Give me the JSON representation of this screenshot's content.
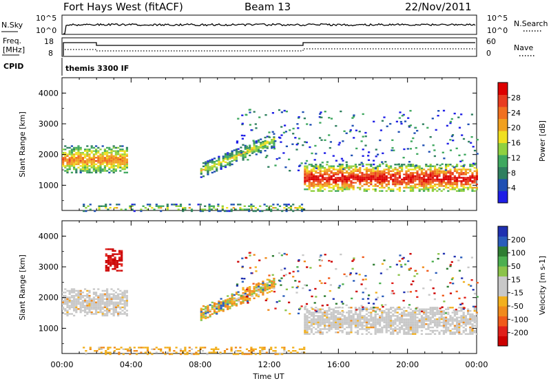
{
  "header": {
    "station": "Fort Hays West (fitACF)",
    "beam": "Beam 13",
    "date": "22/Nov/2011"
  },
  "summary_panels": {
    "nsky": {
      "label": "N.Sky",
      "ticks_top": "10^5",
      "ticks_bottom": "10^0"
    },
    "nsearch": {
      "label": "N.Search",
      "ticks_top": "10^5",
      "ticks_bottom": "10^0"
    },
    "freq": {
      "label_line1": "Freq.",
      "label_line2": "[MHz]",
      "ticks": [
        "18",
        "8"
      ]
    },
    "nave": {
      "label": "Nave",
      "ticks": [
        "60",
        "0"
      ]
    },
    "cpid": {
      "label": "CPID",
      "program": "themis 3300 IF"
    }
  },
  "colors": {
    "power": [
      "#1e1ee6",
      "#1f4fb3",
      "#2f7f5f",
      "#3fa85f",
      "#8fd040",
      "#f0e020",
      "#f0a020",
      "#f07020",
      "#e83c20",
      "#dd0000"
    ],
    "velocity": [
      "#1f30b0",
      "#2a5dbb",
      "#2e7d32",
      "#4caf50",
      "#8bc34a",
      "#c8c8c8",
      "#c8c8c8",
      "#f2b01e",
      "#f08a1c",
      "#f05a1a",
      "#e0201a",
      "#cc0000"
    ]
  },
  "chart_data": [
    {
      "type": "heatmap",
      "title": "Power",
      "xlabel": "Time UT",
      "ylabel": "Slant Range [km]",
      "x_ticks": [
        "00:00",
        "04:00",
        "08:00",
        "12:00",
        "16:00",
        "20:00",
        "00:00"
      ],
      "y_ticks": [
        "1000",
        "2000",
        "3000",
        "4000"
      ],
      "xlim_hours": [
        0,
        24
      ],
      "ylim_km": [
        180,
        4500
      ],
      "colorbar": {
        "label": "Power [dB]",
        "ticks": [
          "4",
          "8",
          "12",
          "16",
          "20",
          "24",
          "28"
        ],
        "range": [
          0,
          30
        ]
      },
      "features": [
        {
          "name": "early band",
          "t_start_h": 0.0,
          "t_end_h": 3.8,
          "range_km": [
            1400,
            2300
          ],
          "level": "medium-high"
        },
        {
          "name": "rising arc",
          "t_start_h": 8.0,
          "t_end_h": 12.3,
          "range_km": [
            1500,
            2500
          ],
          "level": "medium"
        },
        {
          "name": "main band",
          "t_start_h": 14.0,
          "t_end_h": 24.0,
          "range_km": [
            800,
            1700
          ],
          "level": "high"
        },
        {
          "name": "near-range echoes",
          "t_start_h": 1.2,
          "t_end_h": 14.0,
          "range_km": [
            180,
            400
          ],
          "level": "medium"
        }
      ]
    },
    {
      "type": "heatmap",
      "title": "Velocity",
      "xlabel": "Time UT",
      "ylabel": "Slant Range [km]",
      "x_ticks": [
        "00:00",
        "04:00",
        "08:00",
        "12:00",
        "16:00",
        "20:00",
        "00:00"
      ],
      "y_ticks": [
        "1000",
        "2000",
        "3000",
        "4000"
      ],
      "xlim_hours": [
        0,
        24
      ],
      "ylim_km": [
        180,
        4500
      ],
      "colorbar": {
        "label": "Velocity [m s-1]",
        "ticks": [
          "200",
          "100",
          "50",
          "15",
          "-15",
          "-50",
          "-100",
          "-200"
        ],
        "range": [
          -250,
          250
        ]
      },
      "features": [
        {
          "name": "early band",
          "t_start_h": 0.0,
          "t_end_h": 3.8,
          "range_km": [
            1400,
            2300
          ],
          "velocity": "near zero"
        },
        {
          "name": "high-range patch",
          "t_start_h": 2.5,
          "t_end_h": 3.4,
          "range_km": [
            2900,
            3600
          ],
          "velocity": "-200"
        },
        {
          "name": "rising arc",
          "t_start_h": 8.0,
          "t_end_h": 12.3,
          "range_km": [
            1500,
            2500
          ],
          "velocity": "mixed"
        },
        {
          "name": "main band",
          "t_start_h": 14.0,
          "t_end_h": 24.0,
          "range_km": [
            800,
            1700
          ],
          "velocity": "near zero"
        },
        {
          "name": "near-range echoes",
          "t_start_h": 1.2,
          "t_end_h": 14.0,
          "range_km": [
            180,
            400
          ],
          "velocity": "-15 to -50"
        }
      ]
    }
  ]
}
